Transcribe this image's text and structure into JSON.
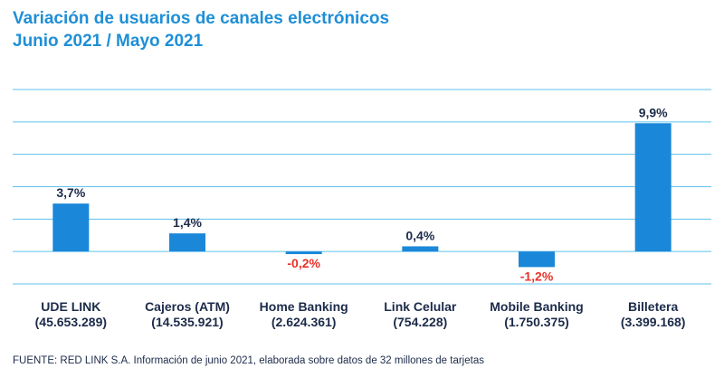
{
  "title": {
    "line1": "Variación de usuarios de canales electrónicos",
    "line2": "Junio 2021 / Mayo 2021"
  },
  "colors": {
    "accent": "#1f8fd6",
    "bar": "#1b87d8",
    "gridline": "#5ec3ee",
    "positive_label": "#1c2b4a",
    "negative_label": "#e8332a"
  },
  "chart_data": {
    "type": "bar",
    "title": "Variación de usuarios de canales electrónicos - Junio 2021 / Mayo 2021",
    "categories": [
      "UDE LINK",
      "Cajeros (ATM)",
      "Home Banking",
      "Link Celular",
      "Mobile Banking",
      "Billetera"
    ],
    "category_subtitles": [
      "(45.653.289)",
      "(14.535.921)",
      "(2.624.361)",
      "(754.228)",
      "(1.750.375)",
      "(3.399.168)"
    ],
    "values": [
      3.7,
      1.4,
      -0.2,
      0.4,
      -1.2,
      9.9
    ],
    "value_labels": [
      "3,7%",
      "1,4%",
      "-0,2%",
      "0,4%",
      "-1,2%",
      "9,9%"
    ],
    "unit": "%",
    "ylim": [
      -2.5,
      12.5
    ],
    "gridlines": [
      -2.5,
      0,
      2.5,
      5,
      7.5,
      10,
      12.5
    ],
    "xlabel": "",
    "ylabel": ""
  },
  "footer": {
    "source": "FUENTE: RED LINK S.A. Información de junio 2021, elaborada sobre datos de 32 millones de tarjetas"
  }
}
